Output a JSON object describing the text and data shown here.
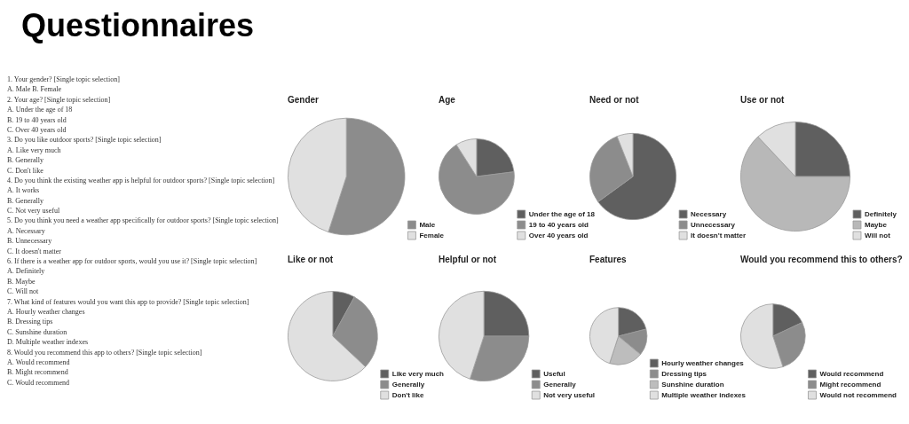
{
  "chart_data": [
    {
      "type": "other",
      "title": "Questionnaires",
      "annotations": [
        "1. Your gender? [Single topic selection]",
        "A. Male B. Female",
        "2. Your age? [Single topic selection]",
        "A. Under the age of 18",
        "B. 19 to 40 years old",
        "C. Over 40 years old",
        "3. Do you like outdoor sports? [Single topic selection]",
        "A. Like very much",
        "B. Generally",
        "C. Don't like",
        "4. Do you think the existing weather app is helpful for outdoor sports? [Single topic selection]",
        "A. It works",
        "B. Generally",
        "C. Not very useful",
        "5. Do you think you need a weather app specifically for outdoor sports? [Single topic selection]",
        "A. Necessary",
        "B. Unnecessary",
        "C. It doesn't matter",
        "6. If there is a weather app for outdoor sports, would you use it? [Single topic selection]",
        "A. Definitely",
        "B. Maybe",
        "C. Will not",
        "7. What kind of features would you want this app to provide? [Single topic selection]",
        "A. Hourly weather changes",
        "B. Dressing tips",
        "C. Sunshine duration",
        "D. Multiple weather indexes",
        "8. Would you recommend this app to others? [Single topic selection]",
        "A. Would recommend",
        "B. Might recommend",
        "C. Would recommend"
      ]
    },
    {
      "type": "pie",
      "title": "Gender",
      "categories": [
        "Male",
        "Female"
      ],
      "values": [
        55,
        45
      ],
      "colors": [
        "#8c8c8c",
        "#e0e0e0"
      ],
      "legend": "bottom right"
    },
    {
      "type": "pie",
      "title": "Age",
      "categories": [
        "Under the age of 18",
        "19 to 40 years old",
        "Over 40 years old"
      ],
      "values": [
        23,
        68,
        9
      ],
      "colors": [
        "#5f5f5f",
        "#8c8c8c",
        "#e0e0e0"
      ],
      "legend": "bottom right"
    },
    {
      "type": "pie",
      "title": "Need or not",
      "categories": [
        "Necessary",
        "Unnecessary",
        "It doesn't matter"
      ],
      "values": [
        65,
        29,
        6
      ],
      "colors": [
        "#5f5f5f",
        "#8c8c8c",
        "#e0e0e0"
      ],
      "legend": "bottom right"
    },
    {
      "type": "pie",
      "title": "Use or not",
      "categories": [
        "Definitely",
        "Maybe",
        "Will not"
      ],
      "values": [
        25,
        63,
        12
      ],
      "colors": [
        "#5f5f5f",
        "#b8b8b8",
        "#e0e0e0"
      ],
      "legend": "bottom right"
    },
    {
      "type": "pie",
      "title": "Like or not",
      "categories": [
        "Like very much",
        "Generally",
        "Don't like"
      ],
      "values": [
        8,
        29,
        63
      ],
      "colors": [
        "#5f5f5f",
        "#8c8c8c",
        "#e0e0e0"
      ],
      "legend": "bottom right"
    },
    {
      "type": "pie",
      "title": "Helpful or not",
      "categories": [
        "Useful",
        "Generally",
        "Not very useful"
      ],
      "values": [
        25,
        30,
        45
      ],
      "colors": [
        "#5f5f5f",
        "#8c8c8c",
        "#e0e0e0"
      ],
      "legend": "bottom right"
    },
    {
      "type": "pie",
      "title": "Features",
      "categories": [
        "Hourly weather changes",
        "Dressing tips",
        "Sunshine duration",
        "Multiple weather indexes"
      ],
      "values": [
        21,
        15,
        19,
        45
      ],
      "colors": [
        "#5f5f5f",
        "#8c8c8c",
        "#bdbdbd",
        "#e0e0e0"
      ],
      "legend": "bottom right"
    },
    {
      "type": "pie",
      "title": "Would you recommend this to others?",
      "categories": [
        "Would recommend",
        "Might recommend",
        "Would not recommend"
      ],
      "values": [
        18,
        27,
        55
      ],
      "colors": [
        "#5f5f5f",
        "#8c8c8c",
        "#e0e0e0"
      ],
      "legend": "bottom right"
    }
  ]
}
